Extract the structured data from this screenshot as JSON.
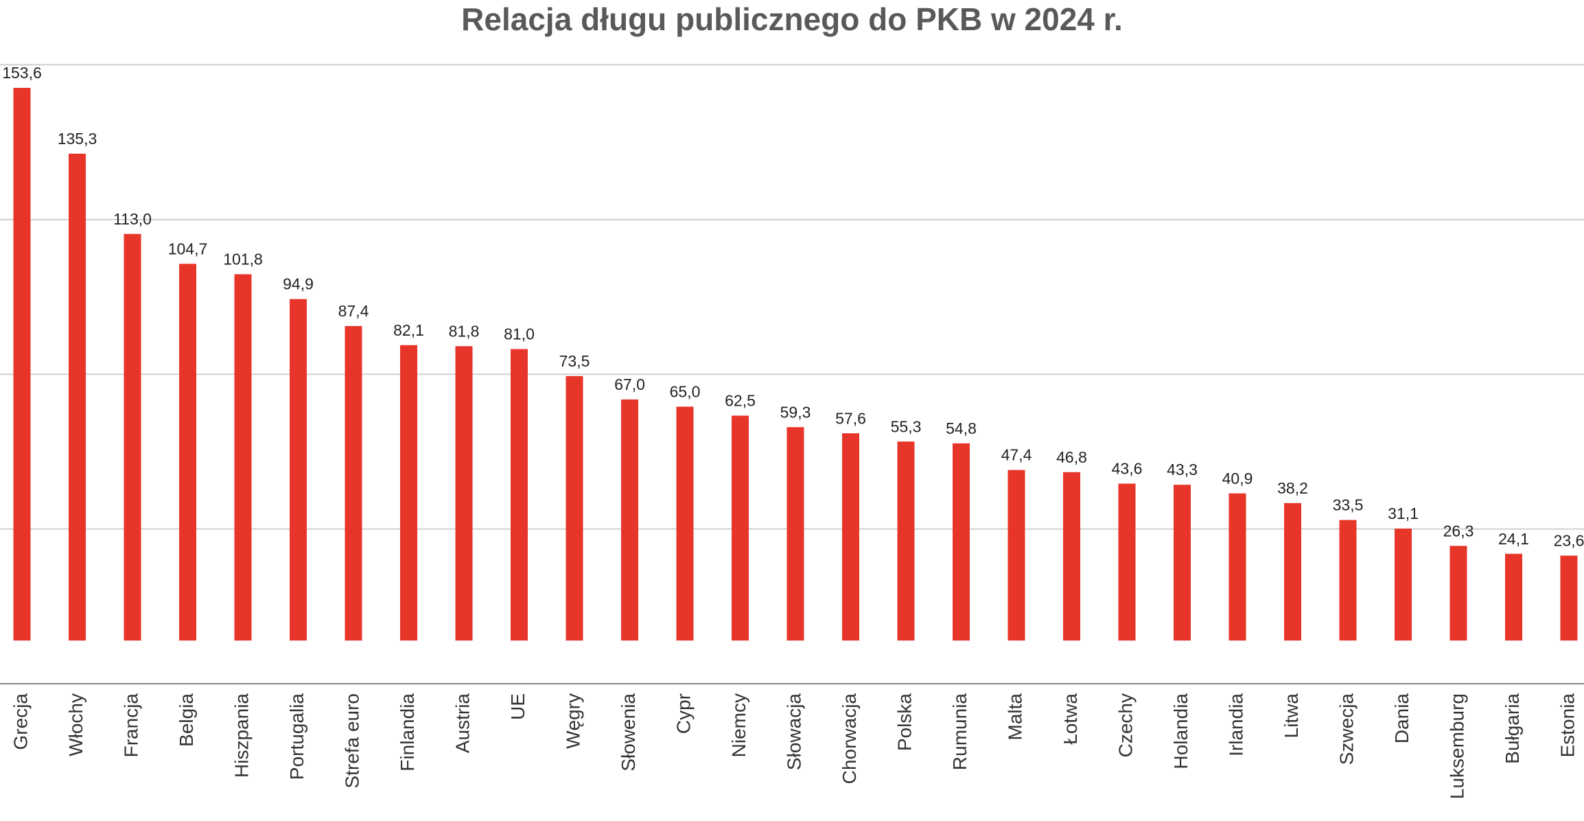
{
  "chart_data": {
    "type": "bar",
    "title": "Relacja długu publicznego do PKB w 2024 r.",
    "categories": [
      "Grecja",
      "Włochy",
      "Francja",
      "Belgia",
      "Hiszpania",
      "Portugalia",
      "Strefa euro",
      "Finlandia",
      "Austria",
      "UE",
      "Węgry",
      "Słowenia",
      "Cypr",
      "Niemcy",
      "Słowacja",
      "Chorwacja",
      "Polska",
      "Rumunia",
      "Malta",
      "Łotwa",
      "Czechy",
      "Holandia",
      "Irlandia",
      "Litwa",
      "Szwecja",
      "Dania",
      "Luksemburg",
      "Bułgaria",
      "Estonia"
    ],
    "values": [
      153.6,
      135.3,
      113.0,
      104.7,
      101.8,
      94.9,
      87.4,
      82.1,
      81.8,
      81.0,
      73.5,
      67.0,
      65.0,
      62.5,
      59.3,
      57.6,
      55.3,
      54.8,
      47.4,
      46.8,
      43.6,
      43.3,
      40.9,
      38.2,
      33.5,
      31.1,
      26.3,
      24.1,
      23.6
    ],
    "value_labels": [
      "153,6",
      "135,3",
      "113,0",
      "104,7",
      "101,8",
      "94,9",
      "87,4",
      "82,1",
      "81,8",
      "81,0",
      "73,5",
      "67,0",
      "65,0",
      "62,5",
      "59,3",
      "57,6",
      "55,3",
      "54,8",
      "47,4",
      "46,8",
      "43,6",
      "43,3",
      "40,9",
      "38,2",
      "33,5",
      "31,1",
      "26,3",
      "24,1",
      "23,6"
    ],
    "color": "#e8352a",
    "ylim": [
      -12,
      170
    ],
    "yticks": [
      -12,
      31,
      74,
      117,
      160
    ],
    "grid": true
  }
}
